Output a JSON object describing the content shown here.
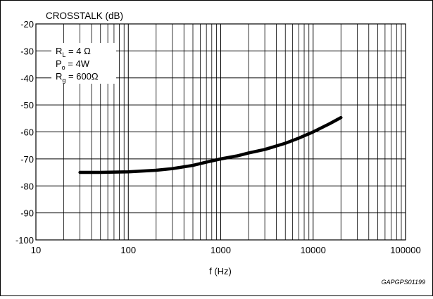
{
  "chart_data": {
    "type": "line",
    "title": "CROSSTALK (dB)",
    "xlabel": "f (Hz)",
    "ylabel": "",
    "xscale": "log",
    "xlim": [
      10,
      100000
    ],
    "ylim": [
      -100,
      -20
    ],
    "xticks": [
      10,
      100,
      1000,
      10000,
      100000
    ],
    "xtick_labels": [
      "10",
      "100",
      "1000",
      "10000",
      "100000"
    ],
    "yticks": [
      -20,
      -30,
      -40,
      -50,
      -60,
      -70,
      -80,
      -90,
      -100
    ],
    "ytick_labels": [
      "-20",
      "-30",
      "-40",
      "-50",
      "-60",
      "-70",
      "-80",
      "-90",
      "-100"
    ],
    "grid": true,
    "conditions": [
      {
        "main": "R",
        "sub": "L",
        "rest": " = 4 Ω"
      },
      {
        "main": "P",
        "sub": "o",
        "rest": " = 4W"
      },
      {
        "main": "R",
        "sub": "g",
        "rest": " = 600Ω"
      }
    ],
    "figure_code": "GAPGPS01199",
    "series": [
      {
        "x": [
          30,
          50,
          100,
          200,
          300,
          500,
          700,
          1000,
          1500,
          2000,
          3000,
          5000,
          7000,
          10000,
          15000,
          20000
        ],
        "y": [
          -75,
          -75,
          -74.8,
          -74.2,
          -73.6,
          -72.4,
          -71.2,
          -70,
          -68.9,
          -67.8,
          -66.5,
          -64.2,
          -62.3,
          -60,
          -57,
          -54.7
        ]
      }
    ],
    "colors": {
      "line": "#000000",
      "grid": "#000000",
      "background": "#ffffff"
    }
  }
}
